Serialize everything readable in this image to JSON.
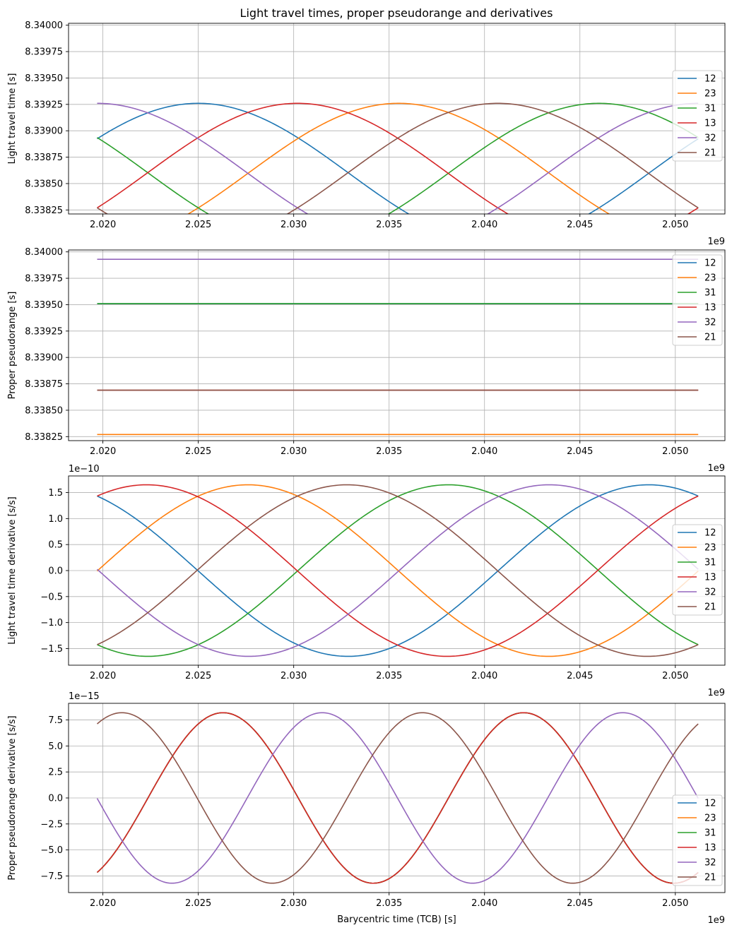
{
  "chart_data": [
    {
      "type": "line",
      "title": "Light travel times, proper pseudorange and derivatives",
      "xlabel": "",
      "ylabel": "Light travel time [s]",
      "x_offset_label": "1e9",
      "y_offset_label": "",
      "xlim": [
        2.0182,
        2.0526
      ],
      "ylim": [
        8.338212,
        8.340018
      ],
      "xticks": [
        2.02,
        2.025,
        2.03,
        2.035,
        2.04,
        2.045,
        2.05
      ],
      "xtick_labels": [
        "2.020",
        "2.025",
        "2.030",
        "2.035",
        "2.040",
        "2.045",
        "2.050"
      ],
      "yticks": [
        8.33825,
        8.3385,
        8.33875,
        8.339,
        8.33925,
        8.3395,
        8.33975,
        8.34
      ],
      "ytick_labels": [
        "8.33825",
        "8.33850",
        "8.33875",
        "8.33900",
        "8.33925",
        "8.33950",
        "8.33975",
        "8.34000"
      ],
      "grid": true,
      "legend_position": "right",
      "x_range": [
        2.0197,
        2.0512
      ],
      "series": [
        {
          "name": "12",
          "color": "#1f77b4",
          "kind": "sine",
          "offset": 8.3386,
          "amplitude": 0.00066,
          "period": 0.0315,
          "peak_at": 2.025
        },
        {
          "name": "23",
          "color": "#ff7f0e",
          "kind": "sine",
          "offset": 8.3386,
          "amplitude": 0.00066,
          "period": 0.0315,
          "peak_at": 2.0355
        },
        {
          "name": "31",
          "color": "#2ca02c",
          "kind": "sine",
          "offset": 8.3386,
          "amplitude": 0.00066,
          "period": 0.0315,
          "peak_at": 2.046
        },
        {
          "name": "13",
          "color": "#d62728",
          "kind": "sine",
          "offset": 8.3386,
          "amplitude": 0.00066,
          "period": 0.0315,
          "peak_at": 2.0302
        },
        {
          "name": "32",
          "color": "#9467bd",
          "kind": "sine",
          "offset": 8.3386,
          "amplitude": 0.00066,
          "period": 0.0315,
          "peak_at": 2.0197
        },
        {
          "name": "21",
          "color": "#8c564b",
          "kind": "sine",
          "offset": 8.3386,
          "amplitude": 0.00066,
          "period": 0.0315,
          "peak_at": 2.0407
        }
      ]
    },
    {
      "type": "line",
      "title": "",
      "xlabel": "",
      "ylabel": "Proper pseudorange [s]",
      "x_offset_label": "1e9",
      "y_offset_label": "",
      "xlim": [
        2.0182,
        2.0526
      ],
      "ylim": [
        8.338212,
        8.340018
      ],
      "xticks": [
        2.02,
        2.025,
        2.03,
        2.035,
        2.04,
        2.045,
        2.05
      ],
      "xtick_labels": [
        "2.020",
        "2.025",
        "2.030",
        "2.035",
        "2.040",
        "2.045",
        "2.050"
      ],
      "yticks": [
        8.33825,
        8.3385,
        8.33875,
        8.339,
        8.33925,
        8.3395,
        8.33975,
        8.34
      ],
      "ytick_labels": [
        "8.33825",
        "8.33850",
        "8.33875",
        "8.33900",
        "8.33925",
        "8.33950",
        "8.33975",
        "8.34000"
      ],
      "grid": true,
      "legend_position": "upper right",
      "x_range": [
        2.0197,
        2.0512
      ],
      "series": [
        {
          "name": "12",
          "color": "#1f77b4",
          "kind": "const",
          "value": 8.33951
        },
        {
          "name": "23",
          "color": "#ff7f0e",
          "kind": "const",
          "value": 8.33827
        },
        {
          "name": "31",
          "color": "#2ca02c",
          "kind": "const",
          "value": 8.33951
        },
        {
          "name": "13",
          "color": "#d62728",
          "kind": "const",
          "value": 8.33869
        },
        {
          "name": "32",
          "color": "#9467bd",
          "kind": "const",
          "value": 8.33993
        },
        {
          "name": "21",
          "color": "#8c564b",
          "kind": "const",
          "value": 8.33869
        }
      ]
    },
    {
      "type": "line",
      "title": "",
      "xlabel": "",
      "ylabel": "Light travel time derivative [s/s]",
      "x_offset_label": "1e9",
      "y_offset_label": "1e−10",
      "xlim": [
        2.0182,
        2.0526
      ],
      "ylim": [
        -1.82,
        1.82
      ],
      "xticks": [
        2.02,
        2.025,
        2.03,
        2.035,
        2.04,
        2.045,
        2.05
      ],
      "xtick_labels": [
        "2.020",
        "2.025",
        "2.030",
        "2.035",
        "2.040",
        "2.045",
        "2.050"
      ],
      "yticks": [
        -1.5,
        -1.0,
        -0.5,
        0.0,
        0.5,
        1.0,
        1.5
      ],
      "ytick_labels": [
        "−1.5",
        "−1.0",
        "−0.5",
        "0.0",
        "0.5",
        "1.0",
        "1.5"
      ],
      "grid": true,
      "legend_position": "right",
      "x_range": [
        2.0197,
        2.0512
      ],
      "series": [
        {
          "name": "12",
          "color": "#1f77b4",
          "kind": "sine",
          "offset": 0,
          "amplitude": 1.65,
          "period": 0.0315,
          "peak_at": 2.0486
        },
        {
          "name": "23",
          "color": "#ff7f0e",
          "kind": "sine",
          "offset": 0,
          "amplitude": 1.65,
          "period": 0.0315,
          "peak_at": 2.0276
        },
        {
          "name": "31",
          "color": "#2ca02c",
          "kind": "sine",
          "offset": 0,
          "amplitude": 1.65,
          "period": 0.0315,
          "peak_at": 2.0381
        },
        {
          "name": "13",
          "color": "#d62728",
          "kind": "sine",
          "offset": 0,
          "amplitude": 1.65,
          "period": 0.0315,
          "peak_at": 2.0223
        },
        {
          "name": "32",
          "color": "#9467bd",
          "kind": "sine",
          "offset": 0,
          "amplitude": 1.65,
          "period": 0.0315,
          "peak_at": 2.0434
        },
        {
          "name": "21",
          "color": "#8c564b",
          "kind": "sine",
          "offset": 0,
          "amplitude": 1.65,
          "period": 0.0315,
          "peak_at": 2.0328
        }
      ]
    },
    {
      "type": "line",
      "title": "",
      "xlabel": "Barycentric time (TCB) [s]",
      "ylabel": "Proper pseudorange derivative [s/s]",
      "x_offset_label": "1e9",
      "y_offset_label": "1e−15",
      "xlim": [
        2.0182,
        2.0526
      ],
      "ylim": [
        -9.1,
        9.1
      ],
      "xticks": [
        2.02,
        2.025,
        2.03,
        2.035,
        2.04,
        2.045,
        2.05
      ],
      "xtick_labels": [
        "2.020",
        "2.025",
        "2.030",
        "2.035",
        "2.040",
        "2.045",
        "2.050"
      ],
      "yticks": [
        -7.5,
        -5.0,
        -2.5,
        0.0,
        2.5,
        5.0,
        7.5
      ],
      "ytick_labels": [
        "−7.5",
        "−5.0",
        "−2.5",
        "0.0",
        "2.5",
        "5.0",
        "7.5"
      ],
      "grid": true,
      "legend_position": "lower right",
      "x_range": [
        2.0197,
        2.0512
      ],
      "series": [
        {
          "name": "12",
          "color": "#1f77b4",
          "kind": "sine",
          "offset": 0,
          "amplitude": 8.2,
          "period": 0.01575,
          "peak_at": 2.0263
        },
        {
          "name": "23",
          "color": "#ff7f0e",
          "kind": "sine",
          "offset": 0,
          "amplitude": 8.2,
          "period": 0.01575,
          "peak_at": 2.0263
        },
        {
          "name": "31",
          "color": "#2ca02c",
          "kind": "sine",
          "offset": 0,
          "amplitude": 8.2,
          "period": 0.01575,
          "peak_at": 2.0263
        },
        {
          "name": "13",
          "color": "#d62728",
          "kind": "sine",
          "offset": 0,
          "amplitude": 8.2,
          "period": 0.01575,
          "peak_at": 2.0263
        },
        {
          "name": "32",
          "color": "#9467bd",
          "kind": "sine",
          "offset": 0,
          "amplitude": 8.2,
          "period": 0.01575,
          "peak_at": 2.0315
        },
        {
          "name": "21",
          "color": "#8c564b",
          "kind": "sine",
          "offset": 0,
          "amplitude": 8.2,
          "period": 0.01575,
          "peak_at": 2.021
        }
      ]
    }
  ]
}
